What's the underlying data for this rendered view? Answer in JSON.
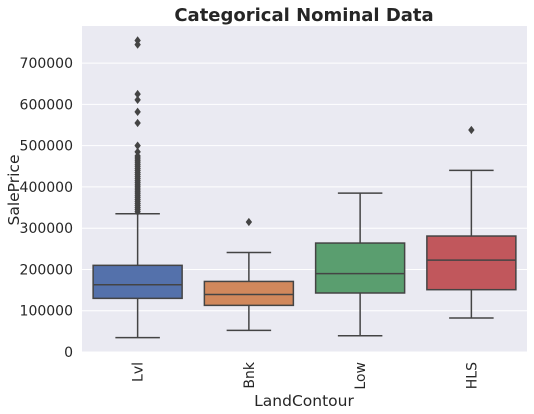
{
  "chart_data": {
    "type": "box",
    "title": "Categorical Nominal Data",
    "xlabel": "LandContour",
    "ylabel": "SalePrice",
    "categories": [
      "Lvl",
      "Bnk",
      "Low",
      "HLS"
    ],
    "ylim": [
      0,
      790000
    ],
    "yticks": [
      0,
      100000,
      200000,
      300000,
      400000,
      500000,
      600000,
      700000
    ],
    "ytick_labels": [
      "0",
      "100000",
      "200000",
      "300000",
      "400000",
      "500000",
      "600000",
      "700000"
    ],
    "grid": true,
    "boxes": [
      {
        "category": "Lvl",
        "whisker_low": 34900,
        "q1": 130000,
        "median": 162900,
        "q3": 210000,
        "whisker_high": 335000,
        "color": "#5471ab",
        "outliers": [
          340000,
          345000,
          350000,
          355000,
          360000,
          365000,
          370000,
          375000,
          380000,
          385000,
          390000,
          395000,
          400000,
          405000,
          410000,
          415000,
          420000,
          425000,
          430000,
          435000,
          440000,
          445000,
          450000,
          455000,
          460000,
          465000,
          470000,
          475000,
          485000,
          500000,
          555000,
          582000,
          611000,
          625000,
          745000,
          755000
        ]
      },
      {
        "category": "Bnk",
        "whisker_low": 52500,
        "q1": 113000,
        "median": 139400,
        "q3": 171000,
        "whisker_high": 241000,
        "color": "#d1885c",
        "outliers": [
          315000
        ]
      },
      {
        "category": "Low",
        "whisker_low": 39300,
        "q1": 143000,
        "median": 190000,
        "q3": 264000,
        "whisker_high": 385000,
        "color": "#5a9e6f",
        "outliers": []
      },
      {
        "category": "HLS",
        "whisker_low": 82500,
        "q1": 151000,
        "median": 222500,
        "q3": 281000,
        "whisker_high": 440000,
        "color": "#c1575c",
        "outliers": [
          538000
        ]
      }
    ]
  }
}
